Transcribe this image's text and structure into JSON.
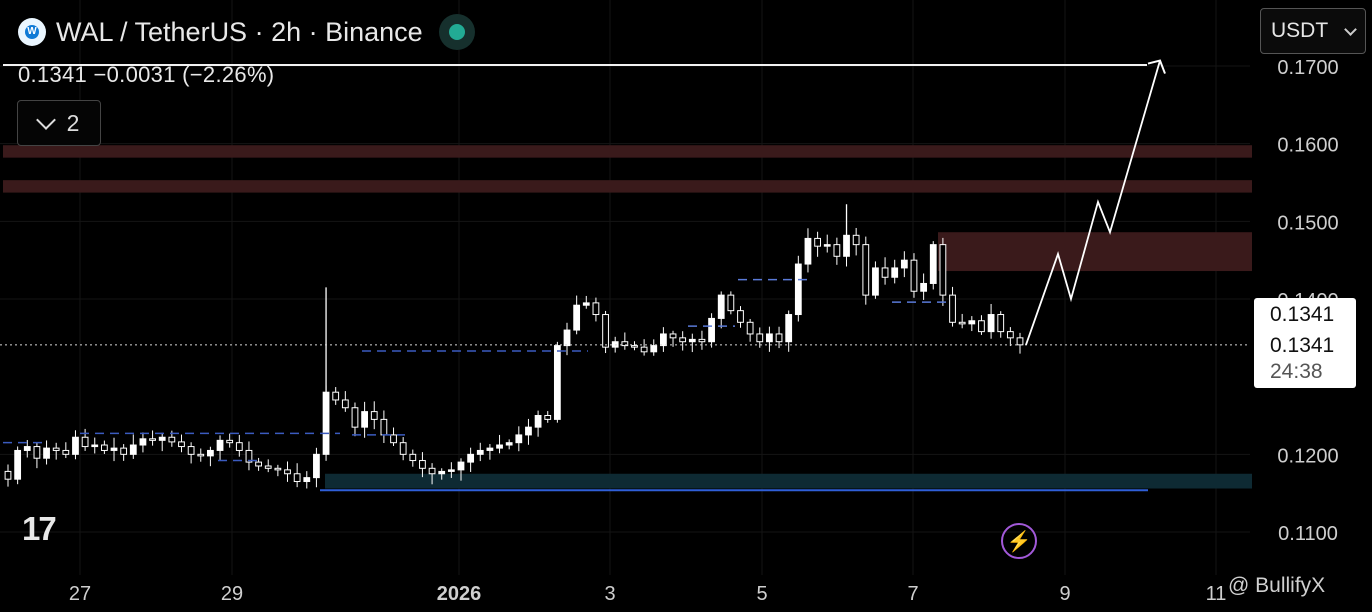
{
  "header": {
    "logo_letter": "W",
    "symbol_title": "WAL / TetherUS · 2h · Binance",
    "status_color": "#22ab94"
  },
  "ohlc_line": "0.1341  −0.0031 (−2.26%)",
  "indicators_toggle": {
    "icon": "chevron-down-icon",
    "count": "2"
  },
  "currency_selector": {
    "label": "USDT",
    "icon": "chevron-down-icon"
  },
  "price_scale": {
    "labels": [
      "0.1700",
      "0.1600",
      "0.1500",
      "0.1400",
      "0.1200",
      "0.1100"
    ]
  },
  "time_scale": {
    "labels": [
      "27",
      "29",
      "2026",
      "3",
      "5",
      "7",
      "9",
      "11"
    ]
  },
  "last_price": {
    "value": "0.1341",
    "value_line": "0.1341",
    "countdown": "24:38"
  },
  "watermark": "@ BullifyX",
  "brand_mark": "17",
  "colors": {
    "zone_red": "#3a1a1a",
    "zone_blue": "#0f2a3a",
    "line_blue": "#2a5cd6",
    "candle": "#ffffff"
  },
  "chart_data": {
    "type": "candlestick",
    "instrument": "WAL / TetherUS",
    "timeframe": "2h",
    "ylim": [
      0.1055,
      0.1745
    ],
    "x_labels": [
      "27",
      "29",
      "2026",
      "3",
      "5",
      "7",
      "9",
      "11"
    ],
    "resistance_line": 0.17,
    "current_price": 0.1341,
    "zones": [
      {
        "low": 0.1582,
        "high": 0.1598
      },
      {
        "low": 0.1537,
        "high": 0.1553
      },
      {
        "low": 0.1436,
        "high": 0.1486
      },
      {
        "low": 0.1156,
        "high": 0.1175
      }
    ],
    "support_line": 0.1155,
    "projection": [
      0.1341,
      0.1458,
      0.14,
      0.1525,
      0.1486,
      0.1707
    ],
    "close_path": [
      0.1168,
      0.1205,
      0.121,
      0.1195,
      0.1208,
      0.1205,
      0.12,
      0.1222,
      0.121,
      0.1212,
      0.1205,
      0.1208,
      0.12,
      0.1212,
      0.122,
      0.1218,
      0.1222,
      0.1216,
      0.121,
      0.12,
      0.1198,
      0.1205,
      0.1218,
      0.1215,
      0.1205,
      0.119,
      0.1185,
      0.1182,
      0.118,
      0.1175,
      0.1165,
      0.117,
      0.12,
      0.128,
      0.127,
      0.126,
      0.1235,
      0.1255,
      0.1245,
      0.1225,
      0.1215,
      0.12,
      0.1192,
      0.1182,
      0.1175,
      0.1178,
      0.118,
      0.119,
      0.12,
      0.1205,
      0.1208,
      0.1212,
      0.1215,
      0.1225,
      0.1235,
      0.125,
      0.1245,
      0.134,
      0.136,
      0.1392,
      0.1395,
      0.138,
      0.1338,
      0.1345,
      0.134,
      0.1338,
      0.1332,
      0.134,
      0.1355,
      0.135,
      0.1345,
      0.1348,
      0.1345,
      0.1375,
      0.1405,
      0.1385,
      0.137,
      0.1355,
      0.1345,
      0.1355,
      0.1345,
      0.138,
      0.1445,
      0.1478,
      0.1468,
      0.147,
      0.1455,
      0.1482,
      0.147,
      0.1405,
      0.144,
      0.1428,
      0.144,
      0.145,
      0.141,
      0.142,
      0.147,
      0.1405,
      0.137,
      0.1368,
      0.1372,
      0.1358,
      0.138,
      0.1358,
      0.135,
      0.1341
    ]
  }
}
